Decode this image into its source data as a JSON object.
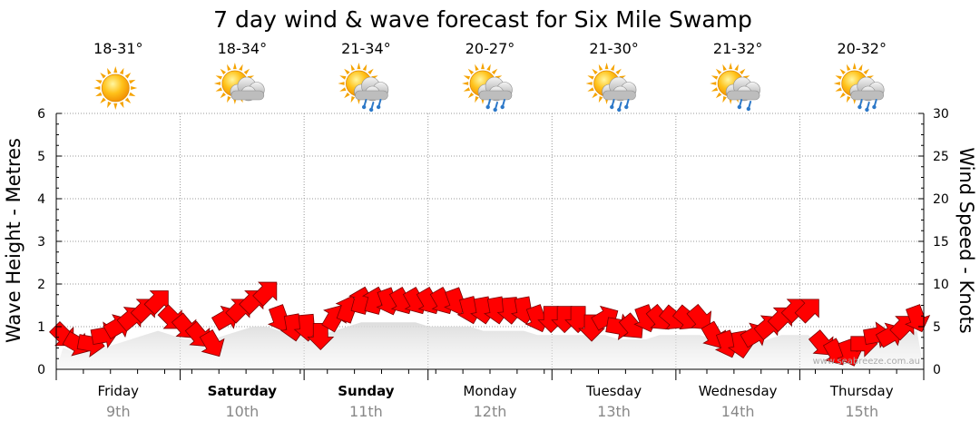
{
  "chart_data": {
    "type": "line",
    "title": "7 day wind & wave forecast for Six Mile Swamp",
    "ylabel_left": "Wave Height - Metres",
    "ylabel_right": "Wind Speed - Knots",
    "ylim_left": [
      0,
      6
    ],
    "ylim_right": [
      0,
      30
    ],
    "yticks_left": [
      "0",
      "1",
      "2",
      "3",
      "4",
      "5",
      "6"
    ],
    "yticks_right": [
      "0",
      "5",
      "10",
      "15",
      "20",
      "25",
      "30"
    ],
    "grid": true,
    "days": [
      {
        "name": "Friday",
        "date": "9th",
        "temp": "18-31°",
        "icon": "sun-icon",
        "bold": false
      },
      {
        "name": "Saturday",
        "date": "10th",
        "temp": "18-34°",
        "icon": "sun-cloud-icon",
        "bold": true
      },
      {
        "name": "Sunday",
        "date": "11th",
        "temp": "21-34°",
        "icon": "sun-cloud-rain-icon",
        "bold": true
      },
      {
        "name": "Monday",
        "date": "12th",
        "temp": "20-27°",
        "icon": "sun-cloud-rain-icon",
        "bold": false
      },
      {
        "name": "Tuesday",
        "date": "13th",
        "temp": "21-30°",
        "icon": "sun-cloud-rain-icon",
        "bold": false
      },
      {
        "name": "Wednesday",
        "date": "14th",
        "temp": "21-32°",
        "icon": "sun-cloud-rain-light-icon",
        "bold": false
      },
      {
        "name": "Thursday",
        "date": "15th",
        "temp": "20-32°",
        "icon": "sun-cloud-rain-icon",
        "bold": false
      }
    ],
    "wind_series": {
      "name": "Wind Speed",
      "color": "#ff0000",
      "points_per_day": 8,
      "speed_knots": [
        4,
        3,
        3,
        4,
        5,
        6,
        7,
        8,
        6,
        5,
        4,
        3,
        6,
        7,
        8,
        9,
        6,
        5,
        5,
        4,
        6,
        7,
        8,
        8,
        8,
        8,
        8,
        8,
        8,
        8,
        7,
        7,
        7,
        7,
        7,
        6,
        6,
        6,
        6,
        5,
        6,
        5,
        5,
        6,
        6,
        6,
        6,
        6,
        4,
        3,
        3,
        4,
        5,
        6,
        7,
        7,
        3,
        2,
        2,
        3,
        4,
        4,
        5,
        6
      ],
      "direction_deg": [
        135,
        120,
        100,
        80,
        60,
        50,
        45,
        45,
        135,
        140,
        140,
        150,
        60,
        45,
        45,
        45,
        160,
        170,
        175,
        180,
        30,
        20,
        15,
        15,
        160,
        150,
        150,
        150,
        150,
        160,
        165,
        170,
        170,
        175,
        170,
        160,
        180,
        180,
        180,
        180,
        60,
        100,
        140,
        160,
        140,
        130,
        130,
        140,
        150,
        160,
        170,
        60,
        50,
        45,
        45,
        45,
        140,
        150,
        160,
        90,
        80,
        60,
        45,
        160
      ]
    },
    "wave_series": {
      "name": "Wave Height",
      "height_m": [
        0.8,
        0.7,
        0.7,
        0.8,
        0.9,
        1.0,
        1.1,
        1.2,
        1.1,
        1.0,
        1.0,
        1.0,
        1.1,
        1.2,
        1.3,
        1.3,
        1.2,
        1.2,
        1.2,
        1.1,
        1.2,
        1.3,
        1.4,
        1.4,
        1.4,
        1.4,
        1.4,
        1.3,
        1.3,
        1.3,
        1.3,
        1.2,
        1.2,
        1.2,
        1.2,
        1.1,
        1.1,
        1.1,
        1.1,
        1.1,
        1.1,
        1.0,
        1.0,
        1.0,
        1.1,
        1.1,
        1.1,
        1.1,
        1.0,
        0.9,
        0.9,
        0.9,
        1.0,
        1.1,
        1.1,
        1.1,
        0.8,
        0.7,
        0.7,
        0.8,
        0.9,
        1.0,
        1.1,
        1.2
      ]
    }
  },
  "credit": "www.seabreeze.com.au"
}
